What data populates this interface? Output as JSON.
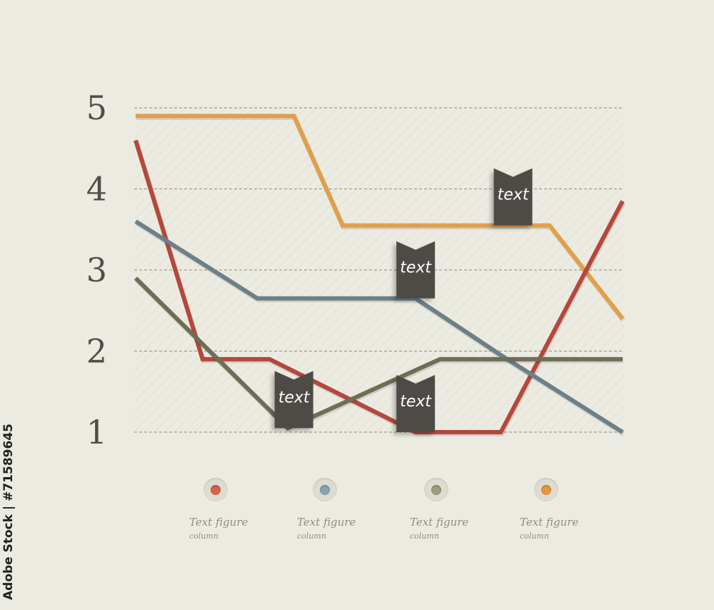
{
  "chart_data": {
    "type": "line",
    "y_ticks": [
      "5",
      "4",
      "3",
      "2",
      "1"
    ],
    "ylim": [
      1,
      5
    ],
    "grid": true,
    "series": [
      {
        "color": "#e0a04a",
        "x": [
          0,
          1.3,
          1.7,
          3.0,
          3.4,
          4.0
        ],
        "values": [
          4.9,
          4.9,
          3.55,
          3.55,
          3.55,
          2.4
        ]
      },
      {
        "color": "#b5473b",
        "x": [
          0,
          0.55,
          1.1,
          2.3,
          3.0,
          4.0
        ],
        "values": [
          4.6,
          1.9,
          1.9,
          1.0,
          1.0,
          3.85
        ]
      },
      {
        "color": "#6b8089",
        "x": [
          0,
          1.0,
          1.35,
          2.3,
          3.0,
          4.0
        ],
        "values": [
          3.6,
          2.65,
          2.65,
          2.65,
          1.95,
          1.0
        ]
      },
      {
        "color": "#6e6e57",
        "x": [
          0,
          1.25,
          2.5,
          4.0
        ],
        "values": [
          2.9,
          1.05,
          1.9,
          1.9
        ]
      }
    ],
    "annotations": [
      {
        "text": "text",
        "x": 1.3,
        "y": 1.05
      },
      {
        "text": "text",
        "x": 2.3,
        "y": 1.0
      },
      {
        "text": "text",
        "x": 2.3,
        "y": 2.65
      },
      {
        "text": "text",
        "x": 3.1,
        "y": 3.55
      }
    ]
  },
  "legend": [
    {
      "label": "Text figure",
      "sub": "column",
      "color": "#d9604a"
    },
    {
      "label": "Text figure",
      "sub": "column",
      "color": "#8aa3b0"
    },
    {
      "label": "Text figure",
      "sub": "column",
      "color": "#98a07c"
    },
    {
      "label": "Text figure",
      "sub": "column",
      "color": "#e3983f"
    }
  ],
  "watermark": "Adobe Stock | #71589645"
}
